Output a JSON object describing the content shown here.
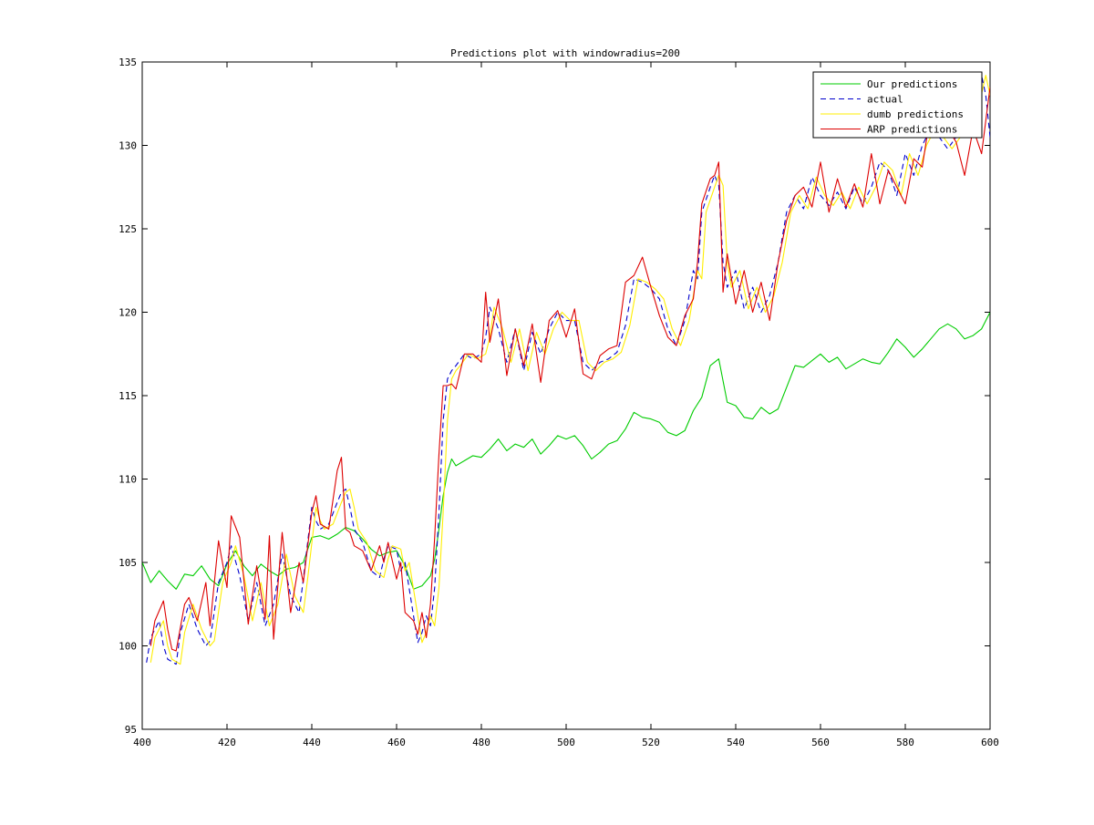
{
  "chart_data": {
    "type": "line",
    "title": "Predictions plot with windowradius=200",
    "xlabel": "",
    "ylabel": "",
    "xlim": [
      400,
      600
    ],
    "ylim": [
      95,
      135
    ],
    "xticks": [
      400,
      420,
      440,
      460,
      480,
      500,
      520,
      540,
      560,
      580,
      600
    ],
    "yticks": [
      95,
      100,
      105,
      110,
      115,
      120,
      125,
      130,
      135
    ],
    "grid": false,
    "legend_position": "top-right",
    "series": [
      {
        "name": "Our predictions",
        "color": "#00cc00",
        "style": "solid",
        "x": [
          400,
          402,
          404,
          406,
          408,
          410,
          412,
          414,
          416,
          418,
          420,
          422,
          424,
          426,
          428,
          430,
          432,
          434,
          436,
          438,
          440,
          442,
          444,
          446,
          448,
          450,
          452,
          454,
          456,
          458,
          460,
          462,
          464,
          466,
          468,
          469,
          470,
          471,
          472,
          473,
          474,
          476,
          478,
          480,
          482,
          484,
          486,
          488,
          490,
          492,
          494,
          496,
          498,
          500,
          502,
          504,
          506,
          508,
          510,
          512,
          514,
          516,
          518,
          520,
          522,
          524,
          526,
          528,
          530,
          532,
          534,
          536,
          538,
          540,
          542,
          544,
          546,
          548,
          550,
          552,
          554,
          556,
          558,
          560,
          562,
          564,
          566,
          568,
          570,
          572,
          574,
          576,
          578,
          580,
          582,
          584,
          586,
          588,
          590,
          592,
          594,
          596,
          598,
          600
        ],
        "values": [
          105.0,
          103.8,
          104.5,
          103.9,
          103.4,
          104.3,
          104.2,
          104.8,
          104.0,
          103.6,
          104.9,
          105.7,
          104.8,
          104.2,
          104.9,
          104.5,
          104.2,
          104.6,
          104.7,
          105.0,
          106.5,
          106.6,
          106.4,
          106.7,
          107.1,
          106.9,
          106.4,
          105.8,
          105.4,
          105.6,
          105.7,
          104.8,
          103.4,
          103.6,
          104.2,
          105.2,
          107.0,
          109.0,
          110.4,
          111.2,
          110.8,
          111.1,
          111.4,
          111.3,
          111.8,
          112.4,
          111.7,
          112.1,
          111.9,
          112.4,
          111.5,
          112.0,
          112.6,
          112.4,
          112.6,
          112.0,
          111.2,
          111.6,
          112.1,
          112.3,
          113.0,
          114.0,
          113.7,
          113.6,
          113.4,
          112.8,
          112.6,
          112.9,
          114.1,
          114.9,
          116.8,
          117.2,
          114.6,
          114.4,
          113.7,
          113.6,
          114.3,
          113.9,
          114.2,
          115.5,
          116.8,
          116.7,
          117.1,
          117.5,
          117.0,
          117.3,
          116.6,
          116.9,
          117.2,
          117.0,
          116.9,
          117.6,
          118.4,
          117.9,
          117.3,
          117.8,
          118.4,
          119.0,
          119.3,
          119.0,
          118.4,
          118.6,
          119.0,
          120.0
        ]
      },
      {
        "name": "actual",
        "color": "#0000cc",
        "style": "dashed",
        "x": [
          401,
          402,
          404,
          405,
          406,
          408,
          409,
          411,
          413,
          415,
          416,
          418,
          420,
          421,
          423,
          425,
          427,
          429,
          431,
          433,
          435,
          437,
          438,
          440,
          441,
          442,
          444,
          446,
          447,
          448,
          449,
          450,
          452,
          454,
          456,
          457,
          458,
          460,
          461,
          462,
          464,
          465,
          466,
          467,
          468,
          469,
          470,
          471,
          472,
          473,
          474,
          476,
          478,
          480,
          481,
          482,
          484,
          486,
          488,
          490,
          492,
          494,
          496,
          498,
          500,
          502,
          504,
          506,
          508,
          510,
          512,
          514,
          516,
          518,
          520,
          522,
          524,
          526,
          528,
          530,
          531,
          532,
          534,
          535,
          536,
          537,
          538,
          540,
          542,
          544,
          546,
          548,
          550,
          552,
          554,
          556,
          558,
          560,
          562,
          564,
          566,
          568,
          570,
          572,
          574,
          576,
          578,
          580,
          582,
          584,
          586,
          588,
          590,
          592,
          594,
          596,
          598,
          599,
          600
        ],
        "values": [
          99.0,
          100.5,
          101.5,
          100.0,
          99.2,
          98.9,
          100.8,
          102.5,
          101.0,
          100.0,
          100.3,
          103.8,
          105.0,
          106.0,
          104.2,
          101.5,
          103.8,
          101.2,
          102.5,
          105.5,
          103.0,
          102.0,
          104.0,
          108.3,
          107.5,
          107.0,
          107.3,
          108.6,
          109.2,
          109.4,
          108.3,
          107.0,
          106.2,
          104.5,
          104.1,
          105.2,
          106.0,
          105.8,
          104.5,
          105.0,
          101.8,
          100.2,
          100.8,
          101.8,
          101.2,
          103.5,
          108.0,
          113.5,
          116.0,
          116.5,
          116.8,
          117.5,
          117.2,
          117.5,
          118.5,
          120.3,
          119.0,
          117.0,
          119.0,
          116.5,
          118.8,
          117.5,
          119.0,
          120.0,
          119.5,
          119.5,
          117.0,
          116.5,
          117.0,
          117.2,
          117.6,
          119.2,
          122.0,
          121.8,
          121.4,
          120.8,
          119.0,
          118.0,
          119.5,
          122.5,
          122.0,
          126.0,
          127.5,
          128.2,
          127.6,
          123.0,
          121.5,
          122.5,
          120.2,
          121.5,
          120.0,
          121.0,
          123.0,
          126.0,
          127.0,
          126.2,
          128.1,
          127.0,
          126.4,
          127.2,
          126.2,
          127.5,
          126.5,
          127.5,
          129.0,
          128.5,
          127.0,
          129.5,
          128.2,
          130.0,
          131.0,
          130.5,
          129.8,
          130.5,
          131.5,
          132.0,
          134.2,
          133.0,
          130.5
        ]
      },
      {
        "name": "dumb predictions",
        "color": "#ffee00",
        "style": "solid",
        "x": [
          402,
          403,
          405,
          406,
          407,
          409,
          410,
          412,
          414,
          416,
          417,
          419,
          421,
          422,
          424,
          426,
          428,
          430,
          432,
          434,
          436,
          438,
          439,
          441,
          442,
          443,
          445,
          447,
          448,
          449,
          450,
          451,
          453,
          455,
          457,
          458,
          459,
          461,
          462,
          463,
          465,
          466,
          467,
          468,
          469,
          470,
          471,
          472,
          473,
          474,
          475,
          477,
          479,
          481,
          482,
          483,
          485,
          487,
          489,
          491,
          493,
          495,
          497,
          499,
          501,
          503,
          505,
          507,
          509,
          511,
          513,
          515,
          517,
          519,
          521,
          523,
          525,
          527,
          529,
          531,
          532,
          533,
          535,
          536,
          537,
          538,
          539,
          541,
          543,
          545,
          547,
          549,
          551,
          553,
          555,
          557,
          559,
          561,
          563,
          565,
          567,
          569,
          571,
          573,
          575,
          577,
          579,
          581,
          583,
          585,
          587,
          589,
          591,
          593,
          595,
          597,
          599,
          600
        ],
        "values": [
          99.0,
          100.5,
          101.5,
          100.0,
          99.2,
          98.9,
          100.8,
          102.5,
          101.0,
          100.0,
          100.3,
          103.8,
          105.0,
          106.0,
          104.2,
          101.5,
          103.8,
          101.2,
          102.5,
          105.5,
          103.0,
          102.0,
          104.0,
          108.3,
          107.5,
          107.0,
          107.3,
          108.6,
          109.2,
          109.4,
          108.3,
          107.0,
          106.2,
          104.5,
          104.1,
          105.2,
          106.0,
          105.8,
          104.5,
          105.0,
          101.8,
          100.2,
          100.8,
          101.8,
          101.2,
          103.5,
          108.0,
          113.5,
          116.0,
          116.5,
          116.8,
          117.5,
          117.2,
          117.5,
          118.5,
          120.3,
          119.0,
          117.0,
          119.0,
          116.5,
          118.8,
          117.5,
          119.0,
          120.0,
          119.5,
          119.5,
          117.0,
          116.5,
          117.0,
          117.2,
          117.6,
          119.2,
          122.0,
          121.8,
          121.4,
          120.8,
          119.0,
          118.0,
          119.5,
          122.5,
          122.0,
          126.0,
          127.5,
          128.2,
          127.6,
          123.0,
          121.5,
          122.5,
          120.2,
          121.5,
          120.0,
          121.0,
          123.0,
          126.0,
          127.0,
          126.2,
          128.1,
          127.0,
          126.4,
          127.2,
          126.2,
          127.5,
          126.5,
          127.5,
          129.0,
          128.5,
          127.0,
          129.5,
          128.2,
          130.0,
          131.0,
          130.5,
          129.8,
          130.5,
          131.5,
          132.0,
          134.2,
          133.0
        ]
      },
      {
        "name": "ARP predictions",
        "color": "#dd0000",
        "style": "solid",
        "x": [
          402,
          403,
          405,
          406,
          407,
          408,
          410,
          411,
          413,
          415,
          416,
          418,
          420,
          421,
          423,
          425,
          427,
          429,
          430,
          431,
          433,
          435,
          437,
          438,
          440,
          441,
          442,
          444,
          446,
          447,
          448,
          449,
          450,
          452,
          454,
          456,
          457,
          458,
          460,
          461,
          462,
          464,
          465,
          466,
          467,
          468,
          469,
          470,
          471,
          472,
          473,
          474,
          476,
          478,
          480,
          481,
          482,
          484,
          486,
          488,
          490,
          492,
          494,
          496,
          498,
          500,
          502,
          504,
          506,
          508,
          510,
          512,
          514,
          516,
          518,
          520,
          522,
          524,
          526,
          528,
          530,
          531,
          532,
          534,
          535,
          536,
          537,
          538,
          540,
          542,
          544,
          546,
          548,
          550,
          552,
          554,
          556,
          558,
          560,
          562,
          564,
          566,
          568,
          570,
          572,
          574,
          576,
          578,
          580,
          582,
          584,
          586,
          588,
          590,
          592,
          594,
          596,
          598,
          600
        ],
        "values": [
          100.0,
          101.5,
          102.7,
          101.0,
          99.8,
          99.7,
          102.5,
          102.9,
          101.5,
          103.8,
          101.2,
          106.3,
          103.5,
          107.8,
          106.5,
          101.3,
          104.8,
          101.6,
          106.6,
          100.4,
          106.8,
          102.0,
          105.0,
          103.8,
          108.0,
          109.0,
          107.3,
          107.0,
          110.5,
          111.3,
          107.0,
          106.8,
          106.0,
          105.7,
          104.5,
          106.0,
          105.0,
          106.2,
          104.0,
          105.0,
          102.0,
          101.5,
          100.7,
          102.0,
          100.5,
          102.5,
          106.5,
          111.5,
          115.6,
          115.6,
          115.7,
          115.4,
          117.5,
          117.5,
          117.0,
          121.2,
          118.2,
          120.8,
          116.2,
          119.0,
          116.8,
          119.3,
          115.8,
          119.5,
          120.1,
          118.5,
          120.2,
          116.3,
          116.0,
          117.4,
          117.8,
          118.0,
          121.8,
          122.2,
          123.3,
          121.5,
          119.8,
          118.5,
          118.0,
          119.8,
          120.8,
          123.0,
          126.5,
          128.0,
          128.2,
          129.0,
          121.2,
          123.5,
          120.5,
          122.5,
          120.0,
          121.8,
          119.5,
          123.0,
          125.5,
          127.0,
          127.5,
          126.3,
          129.0,
          126.0,
          128.0,
          126.3,
          127.7,
          126.3,
          129.5,
          126.5,
          128.5,
          127.5,
          126.5,
          129.2,
          128.7,
          132.0,
          130.5,
          131.0,
          130.2,
          128.2,
          131.0,
          129.5,
          133.5
        ]
      }
    ]
  }
}
